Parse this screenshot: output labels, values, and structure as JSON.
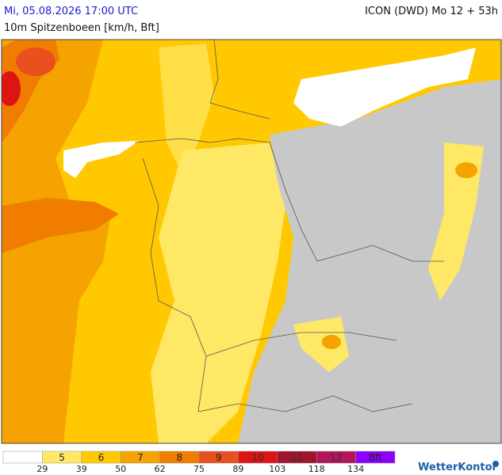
{
  "header": {
    "datetime": "Mi, 05.08.2026 17:00 UTC",
    "model": "ICON (DWD) Mo 12 + 53h",
    "parameter": "10m Spitzenboeen [km/h, Bft]"
  },
  "legend": {
    "colors": [
      "#ffffff",
      "#ffe866",
      "#ffc800",
      "#f5a300",
      "#f07d00",
      "#e8501e",
      "#dc1414",
      "#a0142d",
      "#b4145a",
      "#8c00ff"
    ],
    "bft_labels": [
      "5",
      "6",
      "7",
      "8",
      "9",
      "10",
      "11",
      "12",
      "Bft"
    ],
    "thresholds": [
      29,
      39,
      50,
      62,
      75,
      89,
      103,
      118,
      134
    ]
  },
  "logo": "WetterKontor"
}
